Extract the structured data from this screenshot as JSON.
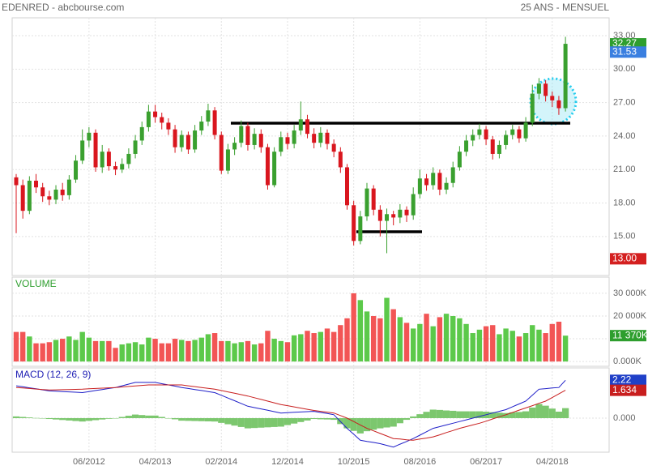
{
  "chart_data": [
    {
      "type": "candlestick",
      "title": "EDENRED - abcbourse.com",
      "subtitle": "25 ANS - MENSUEL",
      "open": [
        20.3,
        19.6,
        17.3,
        20.0,
        19.4,
        18.6,
        18.3,
        19.2,
        18.7,
        20.1,
        21.8,
        23.6,
        24.3,
        21.2,
        22.6,
        21.3,
        21.0,
        21.5,
        22.4,
        23.6,
        24.8,
        26.2,
        25.7,
        25.2,
        24.6,
        23.0,
        24.1,
        22.8,
        24.5,
        25.3,
        26.3,
        24.1,
        20.9,
        22.8,
        23.4,
        24.9,
        23.2,
        24.2,
        23.0,
        19.6,
        22.6,
        23.9,
        23.3,
        24.5,
        25.5,
        24.2,
        23.4,
        24.3,
        23.3,
        22.6,
        21.2,
        17.8,
        14.6,
        16.8,
        19.3,
        17.4,
        16.4,
        17.0,
        16.7,
        17.4,
        16.9,
        18.8,
        20.2,
        19.6,
        20.7,
        19.2,
        19.8,
        21.2,
        22.6,
        23.6,
        24.1,
        24.6,
        23.7,
        22.4,
        23.2,
        24.1,
        24.6,
        23.8,
        25.2,
        27.8,
        28.7,
        27.6,
        27.2,
        26.5
      ],
      "high": [
        20.6,
        20.1,
        20.4,
        20.6,
        19.8,
        19.1,
        19.6,
        19.8,
        20.5,
        22.3,
        24.6,
        24.8,
        24.6,
        23.2,
        22.9,
        21.7,
        22.0,
        22.9,
        24.1,
        25.3,
        26.8,
        26.8,
        26.1,
        25.6,
        25.0,
        24.5,
        24.4,
        25.0,
        25.8,
        26.9,
        26.6,
        24.4,
        23.3,
        23.9,
        25.4,
        25.2,
        24.7,
        24.6,
        23.3,
        23.0,
        24.4,
        24.3,
        25.0,
        27.1,
        25.9,
        24.7,
        24.8,
        24.6,
        23.7,
        23.0,
        21.5,
        18.2,
        17.3,
        19.8,
        19.6,
        17.8,
        17.5,
        17.3,
        17.9,
        17.7,
        19.4,
        21.0,
        20.6,
        21.2,
        21.0,
        20.3,
        21.7,
        23.1,
        24.1,
        24.6,
        25.1,
        24.9,
        24.0,
        23.6,
        24.5,
        25.0,
        24.9,
        25.7,
        28.6,
        29.2,
        29.0,
        28.0,
        27.6,
        32.9
      ],
      "low": [
        15.3,
        16.6,
        17.0,
        18.9,
        18.1,
        17.8,
        17.9,
        18.2,
        18.3,
        19.8,
        21.5,
        23.0,
        20.8,
        20.7,
        20.9,
        20.5,
        20.7,
        21.1,
        22.0,
        23.2,
        24.4,
        25.2,
        24.6,
        24.1,
        22.5,
        22.6,
        22.4,
        22.5,
        24.1,
        24.9,
        23.7,
        20.6,
        20.6,
        22.3,
        23.0,
        22.7,
        22.8,
        22.5,
        19.2,
        19.4,
        22.2,
        22.8,
        22.9,
        24.1,
        23.8,
        22.9,
        23.0,
        22.8,
        22.1,
        20.7,
        17.4,
        14.2,
        14.3,
        16.4,
        16.9,
        15.0,
        13.5,
        16.0,
        16.2,
        16.3,
        16.5,
        18.4,
        19.1,
        19.2,
        18.7,
        18.8,
        19.4,
        20.9,
        22.2,
        23.1,
        23.7,
        23.2,
        21.9,
        22.0,
        22.8,
        23.7,
        23.4,
        23.5,
        24.9,
        27.3,
        27.1,
        26.6,
        25.9,
        26.2
      ],
      "close": [
        19.6,
        17.3,
        20.0,
        19.4,
        18.6,
        18.3,
        19.2,
        18.7,
        20.1,
        21.8,
        23.6,
        24.3,
        21.2,
        22.6,
        21.3,
        21.0,
        21.5,
        22.4,
        23.6,
        24.8,
        26.2,
        25.7,
        25.2,
        24.6,
        23.0,
        24.1,
        22.8,
        24.5,
        25.3,
        26.3,
        24.1,
        20.9,
        22.8,
        23.4,
        24.9,
        23.2,
        24.2,
        23.0,
        19.6,
        22.6,
        23.9,
        23.3,
        24.5,
        25.5,
        24.2,
        23.4,
        24.3,
        23.3,
        22.6,
        21.2,
        17.8,
        14.6,
        16.8,
        19.3,
        17.4,
        16.4,
        17.0,
        16.7,
        17.4,
        16.9,
        18.8,
        20.2,
        19.6,
        20.7,
        19.2,
        19.8,
        21.2,
        22.6,
        23.6,
        24.1,
        24.6,
        23.7,
        22.4,
        23.2,
        24.1,
        24.6,
        23.8,
        25.2,
        27.8,
        28.7,
        27.6,
        27.2,
        26.5,
        32.27
      ],
      "up_color": "#3aa02f",
      "down_color": "#d9161e",
      "ylim": [
        11.5,
        34.6
      ],
      "yticks": [
        {
          "value": 15,
          "label": "15.00"
        },
        {
          "value": 18,
          "label": "18.00"
        },
        {
          "value": 21,
          "label": "21.00"
        },
        {
          "value": 24,
          "label": "24.00"
        },
        {
          "value": 27,
          "label": "27.00"
        },
        {
          "value": 30,
          "label": "30.00"
        },
        {
          "value": 33,
          "label": "33.00"
        }
      ],
      "markers": [
        {
          "value": 32.27,
          "label": "32.27",
          "color": "#2e9e2e"
        },
        {
          "value": 31.53,
          "label": "31.53",
          "color": "#3a7fe0"
        },
        {
          "value": 13,
          "label": "13.00",
          "color": "#d42020"
        }
      ],
      "grid": true
    },
    {
      "type": "bar",
      "title": "VOLUME",
      "title_color": "#2e9e2e",
      "values": [
        13000,
        13000,
        11000,
        8000,
        8000,
        8500,
        9500,
        10000,
        11000,
        9500,
        13000,
        10500,
        9000,
        9000,
        9000,
        6000,
        7500,
        8000,
        8500,
        7500,
        10500,
        10000,
        8000,
        8000,
        10000,
        9500,
        9000,
        9500,
        10500,
        12000,
        12500,
        9000,
        9000,
        8000,
        8500,
        9000,
        7500,
        8000,
        13500,
        10000,
        9000,
        8500,
        11500,
        12000,
        13500,
        12500,
        13000,
        14500,
        13000,
        16000,
        19000,
        30000,
        27000,
        22000,
        20000,
        19000,
        28000,
        23000,
        19500,
        17000,
        14500,
        16500,
        21000,
        15500,
        19500,
        21000,
        20000,
        19000,
        16500,
        12500,
        14000,
        15500,
        16000,
        12000,
        14500,
        13500,
        11000,
        12500,
        16000,
        14000,
        12500,
        16500,
        17500,
        11370
      ],
      "up_color": "#5cc94a",
      "down_color": "#f25555",
      "ylim": [
        -2100,
        37100
      ],
      "yticks": [
        {
          "value": 0,
          "label": "0.000K"
        },
        {
          "value": 10000,
          "label": "10 000K"
        },
        {
          "value": 20000,
          "label": "20 000K"
        },
        {
          "value": 30000,
          "label": "30 000K"
        }
      ],
      "markers": [
        {
          "value": 11370,
          "label": "11 370K",
          "color": "#2e9e2e"
        }
      ],
      "grid": true
    },
    {
      "type": "line",
      "title": "MACD (12, 26, 9)",
      "title_color": "#1e1eb4",
      "categories": [
        null,
        null,
        null,
        null,
        null,
        null,
        null,
        null,
        null,
        null,
        null,
        "06/2012",
        null,
        null,
        null,
        null,
        null,
        null,
        null,
        null,
        null,
        "04/2013",
        null,
        null,
        null,
        null,
        null,
        null,
        null,
        null,
        null,
        "02/2014",
        null,
        null,
        null,
        null,
        null,
        null,
        null,
        null,
        null,
        "12/2014",
        null,
        null,
        null,
        null,
        null,
        null,
        null,
        null,
        null,
        "10/2015",
        null,
        null,
        null,
        null,
        null,
        null,
        null,
        null,
        null,
        "08/2016",
        null,
        null,
        null,
        null,
        null,
        null,
        null,
        null,
        null,
        "06/2017",
        null,
        null,
        null,
        null,
        null,
        null,
        null,
        null,
        null,
        "04/2018",
        null,
        null
      ],
      "series": [
        {
          "color": "#1e1ec8",
          "values": [
            1.9,
            1.84,
            1.78,
            1.72,
            1.66,
            1.6,
            1.58,
            1.56,
            1.54,
            1.52,
            1.5,
            1.56,
            1.62,
            1.68,
            1.74,
            1.8,
            1.9,
            2.0,
            2.1,
            2.1,
            2.1,
            2.1,
            2.02,
            1.95,
            1.88,
            1.8,
            1.74,
            1.68,
            1.62,
            1.56,
            1.5,
            1.34,
            1.18,
            1.02,
            0.86,
            0.7,
            0.62,
            0.54,
            0.46,
            0.38,
            0.3,
            0.32,
            0.34,
            0.36,
            0.38,
            0.4,
            0.33,
            0.27,
            0.2,
            -0.2,
            -0.6,
            -0.95,
            -1.3,
            -1.37,
            -1.43,
            -1.5,
            -1.6,
            -1.7,
            -1.53,
            -1.37,
            -1.2,
            -1.0,
            -0.8,
            -0.6,
            -0.5,
            -0.4,
            -0.3,
            -0.2,
            -0.1,
            0.0,
            0.1,
            0.2,
            0.3,
            0.4,
            0.5,
            0.67,
            0.83,
            1.0,
            1.35,
            1.7,
            1.73,
            1.77,
            1.8,
            2.22
          ]
        },
        {
          "color": "#c81e1e",
          "values": [
            1.8,
            1.77,
            1.74,
            1.71,
            1.68,
            1.65,
            1.66,
            1.67,
            1.68,
            1.69,
            1.7,
            1.72,
            1.74,
            1.76,
            1.78,
            1.8,
            1.83,
            1.86,
            1.89,
            1.92,
            1.95,
            1.95,
            1.95,
            1.95,
            1.95,
            1.95,
            1.9,
            1.85,
            1.8,
            1.75,
            1.7,
            1.62,
            1.54,
            1.46,
            1.38,
            1.3,
            1.2,
            1.1,
            1.0,
            0.9,
            0.8,
            0.73,
            0.66,
            0.59,
            0.52,
            0.45,
            0.4,
            0.35,
            0.3,
            0.15,
            0.0,
            -0.2,
            -0.4,
            -0.6,
            -0.75,
            -0.9,
            -1.05,
            -1.2,
            -1.23,
            -1.27,
            -1.3,
            -1.23,
            -1.17,
            -1.1,
            -0.98,
            -0.85,
            -0.73,
            -0.6,
            -0.5,
            -0.4,
            -0.3,
            -0.18,
            -0.05,
            0.08,
            0.2,
            0.33,
            0.47,
            0.6,
            0.73,
            0.87,
            1.0,
            1.21,
            1.42,
            1.634
          ]
        }
      ],
      "histogram": {
        "color": "#7cc76e",
        "values": [
          0.1,
          0.07,
          0.04,
          0.01,
          -0.02,
          -0.05,
          -0.08,
          -0.11,
          -0.14,
          -0.17,
          -0.2,
          -0.16,
          -0.12,
          -0.08,
          -0.04,
          0.0,
          0.07,
          0.14,
          0.21,
          0.18,
          0.15,
          0.15,
          0.07,
          0.0,
          -0.07,
          -0.15,
          -0.16,
          -0.17,
          -0.18,
          -0.19,
          -0.2,
          -0.28,
          -0.36,
          -0.44,
          -0.52,
          -0.6,
          -0.58,
          -0.56,
          -0.54,
          -0.52,
          -0.5,
          -0.41,
          -0.32,
          -0.23,
          -0.14,
          -0.05,
          -0.07,
          -0.08,
          -0.1,
          -0.35,
          -0.6,
          -0.75,
          -0.9,
          -0.77,
          -0.68,
          -0.6,
          -0.55,
          -0.5,
          -0.3,
          -0.1,
          0.1,
          0.23,
          0.37,
          0.5,
          0.48,
          0.45,
          0.43,
          0.4,
          0.4,
          0.4,
          0.4,
          0.38,
          0.35,
          0.32,
          0.3,
          0.34,
          0.36,
          0.4,
          0.62,
          0.83,
          0.73,
          0.56,
          0.38,
          0.586
        ]
      },
      "ylim": [
        -2,
        2.95
      ],
      "yticks": [
        {
          "value": 0,
          "label": "0.000"
        }
      ],
      "markers": [
        {
          "value": 2.22,
          "label": "2.22",
          "color": "#2040c8"
        },
        {
          "value": 1.634,
          "label": "1.634",
          "color": "#c81e1e"
        }
      ],
      "grid": true
    }
  ]
}
